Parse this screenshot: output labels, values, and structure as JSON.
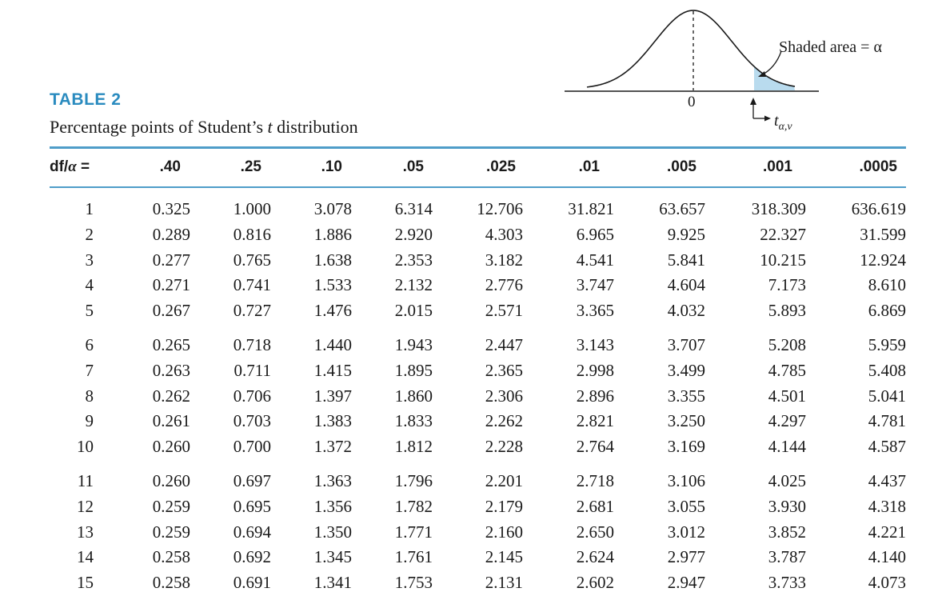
{
  "figure": {
    "zero_label": "0",
    "shaded_label": "Shaded area = α",
    "t_label": "t",
    "t_sub": "α,ν",
    "shade_color": "#b9dbee"
  },
  "table": {
    "label": "TABLE 2",
    "caption_pre": "Percentage points of Student’s ",
    "caption_t": "t",
    "caption_post": " distribution",
    "header_df": "df/",
    "header_alpha": "α",
    "header_eq": " =",
    "alphas": [
      ".40",
      ".25",
      ".10",
      ".05",
      ".025",
      ".01",
      ".005",
      ".001",
      ".0005"
    ],
    "rows": [
      {
        "df": "1",
        "v": [
          "0.325",
          "1.000",
          "3.078",
          "6.314",
          "12.706",
          "31.821",
          "63.657",
          "318.309",
          "636.619"
        ]
      },
      {
        "df": "2",
        "v": [
          "0.289",
          "0.816",
          "1.886",
          "2.920",
          "4.303",
          "6.965",
          "9.925",
          "22.327",
          "31.599"
        ]
      },
      {
        "df": "3",
        "v": [
          "0.277",
          "0.765",
          "1.638",
          "2.353",
          "3.182",
          "4.541",
          "5.841",
          "10.215",
          "12.924"
        ]
      },
      {
        "df": "4",
        "v": [
          "0.271",
          "0.741",
          "1.533",
          "2.132",
          "2.776",
          "3.747",
          "4.604",
          "7.173",
          "8.610"
        ]
      },
      {
        "df": "5",
        "v": [
          "0.267",
          "0.727",
          "1.476",
          "2.015",
          "2.571",
          "3.365",
          "4.032",
          "5.893",
          "6.869"
        ]
      },
      {
        "df": "6",
        "v": [
          "0.265",
          "0.718",
          "1.440",
          "1.943",
          "2.447",
          "3.143",
          "3.707",
          "5.208",
          "5.959"
        ]
      },
      {
        "df": "7",
        "v": [
          "0.263",
          "0.711",
          "1.415",
          "1.895",
          "2.365",
          "2.998",
          "3.499",
          "4.785",
          "5.408"
        ]
      },
      {
        "df": "8",
        "v": [
          "0.262",
          "0.706",
          "1.397",
          "1.860",
          "2.306",
          "2.896",
          "3.355",
          "4.501",
          "5.041"
        ]
      },
      {
        "df": "9",
        "v": [
          "0.261",
          "0.703",
          "1.383",
          "1.833",
          "2.262",
          "2.821",
          "3.250",
          "4.297",
          "4.781"
        ]
      },
      {
        "df": "10",
        "v": [
          "0.260",
          "0.700",
          "1.372",
          "1.812",
          "2.228",
          "2.764",
          "3.169",
          "4.144",
          "4.587"
        ]
      },
      {
        "df": "11",
        "v": [
          "0.260",
          "0.697",
          "1.363",
          "1.796",
          "2.201",
          "2.718",
          "3.106",
          "4.025",
          "4.437"
        ]
      },
      {
        "df": "12",
        "v": [
          "0.259",
          "0.695",
          "1.356",
          "1.782",
          "2.179",
          "2.681",
          "3.055",
          "3.930",
          "4.318"
        ]
      },
      {
        "df": "13",
        "v": [
          "0.259",
          "0.694",
          "1.350",
          "1.771",
          "2.160",
          "2.650",
          "3.012",
          "3.852",
          "4.221"
        ]
      },
      {
        "df": "14",
        "v": [
          "0.258",
          "0.692",
          "1.345",
          "1.761",
          "2.145",
          "2.624",
          "2.977",
          "3.787",
          "4.140"
        ]
      },
      {
        "df": "15",
        "v": [
          "0.258",
          "0.691",
          "1.341",
          "1.753",
          "2.131",
          "2.602",
          "2.947",
          "3.733",
          "4.073"
        ]
      }
    ]
  }
}
